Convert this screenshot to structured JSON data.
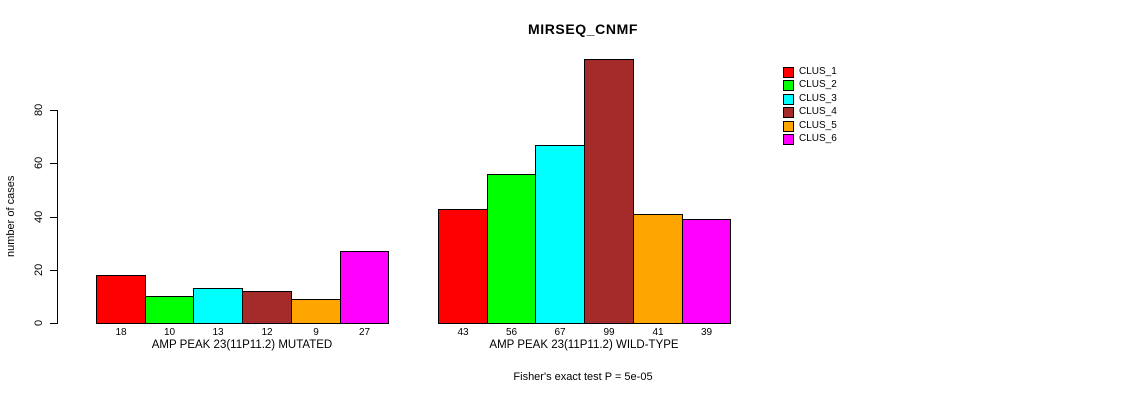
{
  "chart_data": {
    "type": "bar",
    "title": "MIRSEQ_CNMF",
    "ylabel": "number of cases",
    "ylim": [
      0,
      80
    ],
    "yticks": [
      0,
      20,
      40,
      60,
      80
    ],
    "grid": false,
    "legend_position": "top-right",
    "series_names": [
      "CLUS_1",
      "CLUS_2",
      "CLUS_3",
      "CLUS_4",
      "CLUS_5",
      "CLUS_6"
    ],
    "series_colors": [
      "#FF0000",
      "#00FF00",
      "#00FFFF",
      "#A52A2A",
      "#FFA500",
      "#FF00FF"
    ],
    "groups": [
      {
        "label": "AMP PEAK 23(11P11.2) MUTATED",
        "values": [
          18,
          10,
          13,
          12,
          9,
          27
        ]
      },
      {
        "label": "AMP PEAK 23(11P11.2) WILD-TYPE",
        "values": [
          43,
          56,
          67,
          99,
          41,
          39
        ]
      }
    ],
    "annotation": "Fisher's exact test P = 5e-05"
  }
}
